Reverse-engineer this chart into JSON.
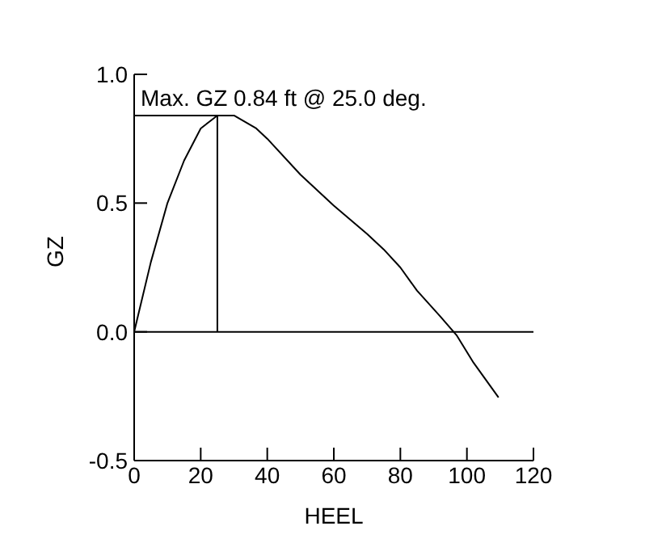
{
  "chart_data": {
    "type": "line",
    "xlabel": "HEEL",
    "ylabel": "GZ",
    "x": [
      0,
      5,
      10,
      15,
      20,
      25,
      30,
      36.7,
      40,
      50,
      60,
      70,
      75,
      80,
      85,
      92,
      97,
      102,
      109.5
    ],
    "series": [
      {
        "color": "#000000",
        "values": [
          0,
          0.27,
          0.5,
          0.665,
          0.79,
          0.84,
          0.84,
          0.79,
          0.75,
          0.61,
          0.49,
          0.38,
          0.32,
          0.25,
          0.16,
          0.06,
          -0.015,
          -0.12,
          -0.255
        ]
      }
    ],
    "xlim": [
      0,
      120
    ],
    "xticks": [
      0,
      20,
      40,
      60,
      80,
      100,
      120
    ],
    "ylim": [
      -0.5,
      1.0
    ],
    "yticks": [
      {
        "value": -0.5,
        "label": "-0.5"
      },
      {
        "value": 0,
        "label": "0.0"
      },
      {
        "value": 0.5,
        "label": "0.5"
      },
      {
        "value": 1.0,
        "label": "1.0"
      }
    ],
    "ref_lines": [
      {
        "axis": "y",
        "value": 0,
        "color": "#000000"
      }
    ],
    "annotations": [
      {
        "text": "Max. GZ 0.84 ft @ 25.0 deg.",
        "x": 25,
        "y": 0.84
      }
    ],
    "grid": false,
    "legend": false,
    "marker": "none",
    "line_style": "solid"
  }
}
